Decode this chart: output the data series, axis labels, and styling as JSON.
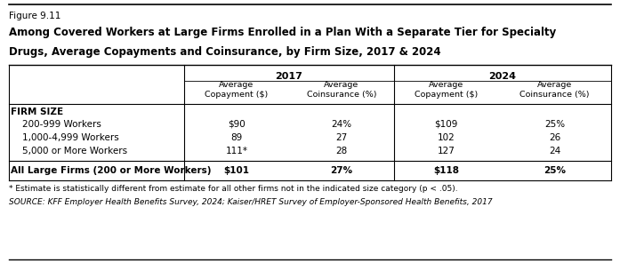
{
  "figure_label": "Figure 9.11",
  "title_line1": "Among Covered Workers at Large Firms Enrolled in a Plan With a Separate Tier for Specialty",
  "title_line2": "Drugs, Average Copayments and Coinsurance, by Firm Size, 2017 & 2024",
  "year_headers": [
    "2017",
    "2024"
  ],
  "col_headers": [
    "Average\nCopayment ($)",
    "Average\nCoinsurance (%)",
    "Average\nCopayment ($)",
    "Average\nCoinsurance (%)"
  ],
  "section_label": "FIRM SIZE",
  "row_labels": [
    "200-999 Workers",
    "1,000-4,999 Workers",
    "5,000 or More Workers"
  ],
  "data_rows": [
    [
      "$90",
      "24%",
      "$109",
      "25%"
    ],
    [
      "89",
      "27",
      "102",
      "26"
    ],
    [
      "111*",
      "28",
      "127",
      "24"
    ]
  ],
  "total_label": "All Large Firms (200 or More Workers)",
  "total_row": [
    "$101",
    "27%",
    "$118",
    "25%"
  ],
  "footnote": "* Estimate is statistically different from estimate for all other firms not in the indicated size category (p < .05).",
  "source": "SOURCE: KFF Employer Health Benefits Survey, 2024; Kaiser/HRET Survey of Employer-Sponsored Health Benefits, 2017",
  "bg_color": "#ffffff"
}
